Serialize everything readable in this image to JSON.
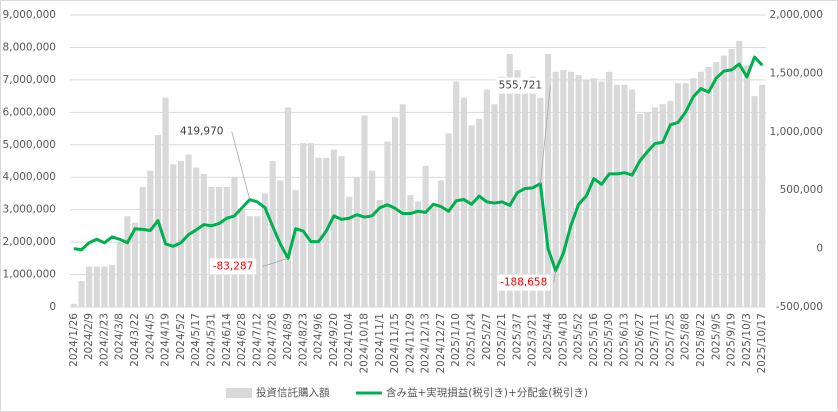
{
  "chart_data": {
    "type": "combo",
    "categories": [
      "2024/1/26",
      null,
      "2024/2/9",
      null,
      "2024/2/23",
      null,
      "2024/3/8",
      null,
      "2024/3/22",
      null,
      "2024/4/5",
      null,
      "2024/4/19",
      null,
      "2024/5/2",
      null,
      "2024/5/17",
      null,
      "2024/5/31",
      null,
      "2024/6/14",
      null,
      "2024/6/28",
      null,
      "2024/7/12",
      null,
      "2024/7/26",
      null,
      "2024/8/9",
      null,
      "2024/8/23",
      null,
      "2024/9/6",
      null,
      "2024/9/20",
      null,
      "2024/10/4",
      null,
      "2024/10/18",
      null,
      "2024/11/1",
      null,
      "2024/11/15",
      null,
      "2024/11/29",
      null,
      "2024/12/13",
      null,
      "2024/12/27",
      null,
      "2025/1/10",
      null,
      "2025/1/24",
      null,
      "2025/2/7",
      null,
      "2025/2/21",
      null,
      "2025/3/7",
      null,
      "2025/3/21",
      null,
      "2025/4/4",
      null,
      "2025/4/18",
      null,
      "2025/5/2",
      null,
      "2025/5/16",
      null,
      "2025/5/30",
      null,
      "2025/6/13",
      null,
      "2025/6/27",
      null,
      "2025/7/11",
      null,
      "2025/7/25",
      null,
      "2025/8/8",
      null,
      "2025/8/22",
      null,
      "2025/9/5",
      null,
      "2025/9/19",
      null,
      "2025/10/3",
      null,
      "2025/10/17"
    ],
    "series": [
      {
        "name": "投資信託購入額",
        "type": "bar",
        "color": "#d9d9d9",
        "values": [
          100000,
          800000,
          1250000,
          1250000,
          1250000,
          1300000,
          2000000,
          2800000,
          2600000,
          3700000,
          4200000,
          5300000,
          6450000,
          4400000,
          4500000,
          4700000,
          4300000,
          4100000,
          3700000,
          3700000,
          3700000,
          4000000,
          3000000,
          2800000,
          2800000,
          3500000,
          4500000,
          3900000,
          6150000,
          3600000,
          5050000,
          5050000,
          4600000,
          4600000,
          4850000,
          4650000,
          3400000,
          4000000,
          5900000,
          4200000,
          3300000,
          5100000,
          5850000,
          6250000,
          3450000,
          3250000,
          4350000,
          3100000,
          3900000,
          5350000,
          6950000,
          6450000,
          5600000,
          5800000,
          6700000,
          6250000,
          7100000,
          7800000,
          7300000,
          6900000,
          7100000,
          6450000,
          7800000,
          7250000,
          7300000,
          7250000,
          7150000,
          7000000,
          7050000,
          6950000,
          7250000,
          6850000,
          6850000,
          6700000,
          5950000,
          6000000,
          6150000,
          6250000,
          6350000,
          6900000,
          6900000,
          7050000,
          7250000,
          7400000,
          7550000,
          7750000,
          7950000,
          8200000,
          7450000,
          6500000,
          6850000
        ]
      },
      {
        "name": "含み益+実現損益(税引き)+分配金(税引き)",
        "type": "line",
        "axis": "y2",
        "color": "#00b050",
        "values": [
          0,
          -10000,
          50000,
          80000,
          50000,
          100000,
          80000,
          50000,
          170000,
          165000,
          155000,
          240000,
          40000,
          20000,
          50000,
          120000,
          160000,
          205000,
          195000,
          215000,
          260000,
          280000,
          350000,
          419970,
          400000,
          350000,
          190000,
          40000,
          -83287,
          170000,
          150000,
          60000,
          60000,
          150000,
          280000,
          250000,
          260000,
          290000,
          270000,
          280000,
          350000,
          375000,
          345000,
          300000,
          300000,
          320000,
          310000,
          380000,
          360000,
          320000,
          410000,
          420000,
          380000,
          450000,
          400000,
          390000,
          400000,
          370000,
          480000,
          515000,
          520000,
          555721,
          0,
          -188658,
          -40000,
          200000,
          380000,
          450000,
          600000,
          550000,
          640000,
          640000,
          650000,
          630000,
          750000,
          830000,
          900000,
          910000,
          1060000,
          1080000,
          1170000,
          1300000,
          1370000,
          1340000,
          1460000,
          1520000,
          1530000,
          1580000,
          1470000,
          1640000,
          1570000
        ],
        "value_labels": [
          null,
          null,
          null,
          null,
          null,
          null,
          null,
          null,
          null,
          null,
          null,
          null,
          null,
          null,
          null,
          null,
          null,
          null,
          null,
          null,
          null,
          null,
          null,
          "419,970",
          null,
          null,
          null,
          null,
          "-83,287",
          null,
          null,
          null,
          null,
          null,
          null,
          null,
          null,
          null,
          null,
          null,
          null,
          null,
          null,
          null,
          null,
          null,
          null,
          null,
          null,
          null,
          null,
          null,
          null,
          null,
          null,
          null,
          null,
          null,
          null,
          null,
          null,
          "555,721",
          null,
          "-188,658",
          null,
          null,
          null,
          null,
          null,
          null,
          null,
          null,
          null,
          null,
          null,
          null,
          null,
          null,
          null,
          null,
          null,
          null,
          null,
          null,
          null,
          null,
          null,
          null,
          null,
          null,
          null
        ]
      }
    ],
    "ylim": [
      0,
      9000000
    ],
    "yticks": [
      0,
      {
        "value": 1000000,
        "label": "1,000,000"
      },
      {
        "value": 2000000,
        "label": "2,000,000"
      },
      {
        "value": 3000000,
        "label": "3,000,000"
      },
      {
        "value": 4000000,
        "label": "4,000,000"
      },
      {
        "value": 5000000,
        "label": "5,000,000"
      },
      {
        "value": 6000000,
        "label": "6,000,000"
      },
      {
        "value": 7000000,
        "label": "7,000,000"
      },
      {
        "value": 8000000,
        "label": "8,000,000"
      },
      {
        "value": 9000000,
        "label": "9,000,000"
      }
    ],
    "y2lim": [
      -500000,
      2000000
    ],
    "y2ticks": [
      {
        "value": -500000,
        "label": "-500,000"
      },
      0,
      {
        "value": 500000,
        "label": "500,000"
      },
      {
        "value": 1000000,
        "label": "1,000,000"
      },
      {
        "value": 1500000,
        "label": "1,500,000"
      },
      {
        "value": 2000000,
        "label": "2,000,000"
      }
    ],
    "grid": true,
    "legend": "bottom",
    "negative_label_color": "#ff0000"
  }
}
